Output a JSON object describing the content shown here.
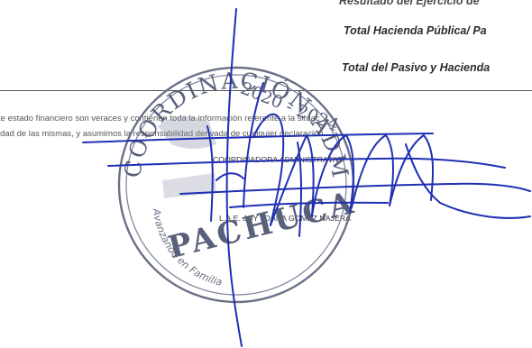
{
  "right_labels": {
    "line1": "Resultado del Ejercicio de",
    "line2": "Total Hacienda Pública/ Pa",
    "line3": "Total del Pasivo y Hacienda"
  },
  "notice": {
    "line1": "te estado financiero son veraces y contienen toda la información referente a la situac",
    "line2": "idad  de las mismas, y asumimos la responsabilidad derivada de cualquier declaración"
  },
  "signature_block": {
    "role": "COORDINADORA ADMINISTRATIVA",
    "name": "L.A.E. JOY JOANA GOMEZ NAJERA"
  },
  "stamp": {
    "top_text": "COORDINACIÓN ADMINISTRATIVA",
    "years": "2020 - 2024",
    "city": "PACHUCA",
    "motto": "Avanzando en Familia"
  },
  "colors": {
    "ink_blue": "#1f2fb5",
    "stamp_gray": "#5a6078"
  }
}
